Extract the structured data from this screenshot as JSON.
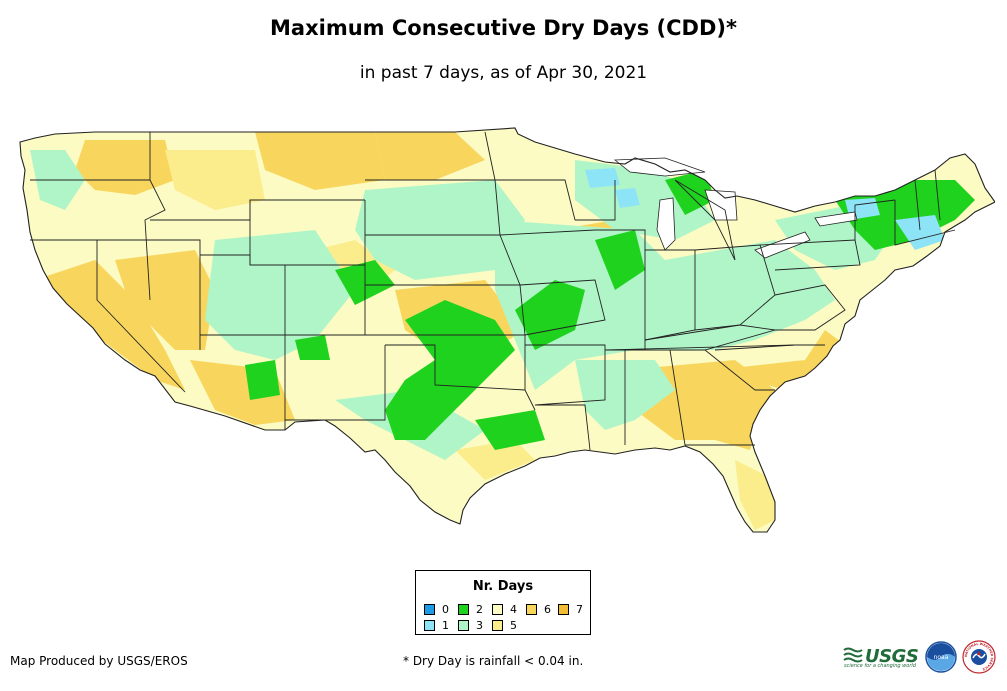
{
  "title": "Maximum Consecutive Dry Days (CDD)*",
  "subtitle": "in past 7 days, as of Apr 30, 2021",
  "legend": {
    "title": "Nr. Days",
    "items": [
      {
        "label": "0",
        "color": "#1e9be6"
      },
      {
        "label": "1",
        "color": "#8de4f7"
      },
      {
        "label": "2",
        "color": "#1ed21e"
      },
      {
        "label": "3",
        "color": "#b0f5c8"
      },
      {
        "label": "4",
        "color": "#fbfbc3"
      },
      {
        "label": "5",
        "color": "#fbec8c"
      },
      {
        "label": "6",
        "color": "#f8d65d"
      },
      {
        "label": "7",
        "color": "#f2bd35"
      }
    ]
  },
  "footer": {
    "producer": "Map Produced by USGS/EROS",
    "footnote": "* Dry Day is rainfall < 0.04 in."
  },
  "logos": {
    "usgs": "USGS",
    "usgs_tagline": "science for a changing world",
    "noaa": "noaa",
    "nws": "NATIONAL WEATHER SERVICE"
  },
  "colors": {
    "boundary": "#222222",
    "usgs_green": "#1f6b3a",
    "noaa_blue": "#1a4fa0"
  }
}
